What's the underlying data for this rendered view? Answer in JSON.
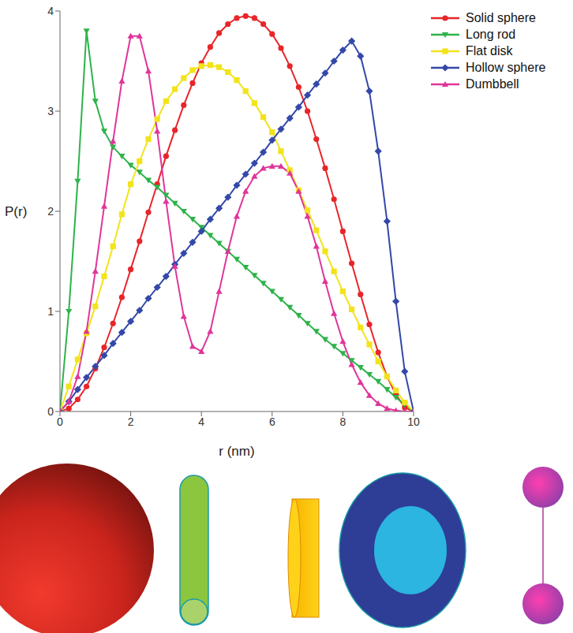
{
  "chart_data": {
    "type": "line",
    "x_label": "r (nm)",
    "y_label": "P(r)",
    "xlim": [
      0,
      10
    ],
    "xticks": [
      0,
      2,
      4,
      6,
      8,
      10
    ],
    "ylim": [
      0,
      4
    ],
    "yticks": [
      0,
      1,
      2,
      3,
      4
    ],
    "grid": false,
    "legend": "top-right",
    "x": [
      0,
      0.25,
      0.5,
      0.75,
      1,
      1.25,
      1.5,
      1.75,
      2,
      2.25,
      2.5,
      2.75,
      3,
      3.25,
      3.5,
      3.75,
      4,
      4.25,
      4.5,
      4.75,
      5,
      5.25,
      5.5,
      5.75,
      6,
      6.25,
      6.5,
      6.75,
      7,
      7.25,
      7.5,
      7.75,
      8,
      8.25,
      8.5,
      8.75,
      9,
      9.25,
      9.5,
      9.75,
      10
    ],
    "series": [
      {
        "name": "Solid sphere",
        "color": "#e8262a",
        "marker": "circle",
        "values": [
          0,
          0.03,
          0.12,
          0.25,
          0.43,
          0.64,
          0.88,
          1.14,
          1.42,
          1.7,
          1.99,
          2.27,
          2.55,
          2.81,
          3.06,
          3.28,
          3.48,
          3.64,
          3.78,
          3.87,
          3.93,
          3.95,
          3.93,
          3.87,
          3.77,
          3.63,
          3.45,
          3.24,
          3.0,
          2.72,
          2.43,
          2.12,
          1.8,
          1.48,
          1.17,
          0.87,
          0.59,
          0.35,
          0.17,
          0.04,
          0
        ]
      },
      {
        "name": "Long rod",
        "color": "#2db34a",
        "marker": "triangle-down",
        "values": [
          0,
          1.0,
          2.3,
          3.8,
          3.1,
          2.8,
          2.64,
          2.55,
          2.46,
          2.39,
          2.31,
          2.24,
          2.16,
          2.08,
          2.0,
          1.92,
          1.84,
          1.76,
          1.68,
          1.6,
          1.52,
          1.44,
          1.36,
          1.28,
          1.2,
          1.12,
          1.04,
          0.96,
          0.88,
          0.8,
          0.72,
          0.65,
          0.58,
          0.51,
          0.44,
          0.37,
          0.3,
          0.22,
          0.14,
          0.07,
          0
        ]
      },
      {
        "name": "Flat disk",
        "color": "#f2e31b",
        "marker": "square",
        "values": [
          0,
          0.25,
          0.52,
          0.78,
          1.05,
          1.35,
          1.65,
          1.97,
          2.27,
          2.5,
          2.72,
          2.92,
          3.1,
          3.22,
          3.33,
          3.41,
          3.45,
          3.46,
          3.44,
          3.39,
          3.31,
          3.2,
          3.08,
          2.94,
          2.79,
          2.6,
          2.41,
          2.21,
          2.01,
          1.81,
          1.6,
          1.4,
          1.2,
          1.02,
          0.84,
          0.67,
          0.5,
          0.35,
          0.21,
          0.09,
          0
        ]
      },
      {
        "name": "Hollow sphere",
        "color": "#3348a8",
        "marker": "diamond",
        "values": [
          0,
          0.1,
          0.22,
          0.34,
          0.45,
          0.56,
          0.68,
          0.79,
          0.9,
          1.01,
          1.13,
          1.24,
          1.35,
          1.47,
          1.58,
          1.69,
          1.8,
          1.92,
          2.03,
          2.14,
          2.26,
          2.37,
          2.48,
          2.59,
          2.71,
          2.82,
          2.93,
          3.04,
          3.16,
          3.27,
          3.38,
          3.5,
          3.61,
          3.7,
          3.55,
          3.2,
          2.6,
          1.9,
          1.1,
          0.4,
          0
        ]
      },
      {
        "name": "Dumbbell",
        "color": "#e0359a",
        "marker": "triangle-up",
        "values": [
          0,
          0.1,
          0.35,
          0.8,
          1.4,
          2.05,
          2.7,
          3.3,
          3.75,
          3.75,
          3.4,
          2.8,
          2.1,
          1.45,
          0.95,
          0.65,
          0.6,
          0.8,
          1.2,
          1.6,
          1.95,
          2.2,
          2.35,
          2.43,
          2.45,
          2.45,
          2.38,
          2.2,
          1.95,
          1.65,
          1.3,
          0.98,
          0.7,
          0.47,
          0.29,
          0.16,
          0.08,
          0.03,
          0.01,
          0,
          0
        ]
      }
    ]
  }
}
